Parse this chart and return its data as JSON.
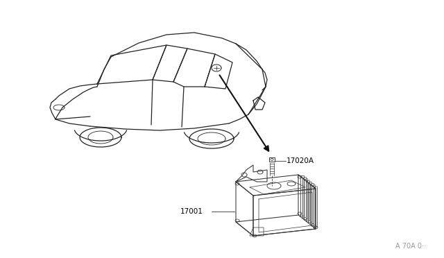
{
  "background_color": "#ffffff",
  "line_color": "#333333",
  "arrow_color": "#111111",
  "label_17020A": "17020A",
  "label_17001": "17001",
  "ref_code": "A 70A 0··",
  "label_fontsize": 7.5,
  "ref_fontsize": 7,
  "car_lw": 0.9,
  "part_lw": 0.75,
  "arrow_lw": 1.5,
  "car_color": "#222222",
  "part_color": "#333333"
}
